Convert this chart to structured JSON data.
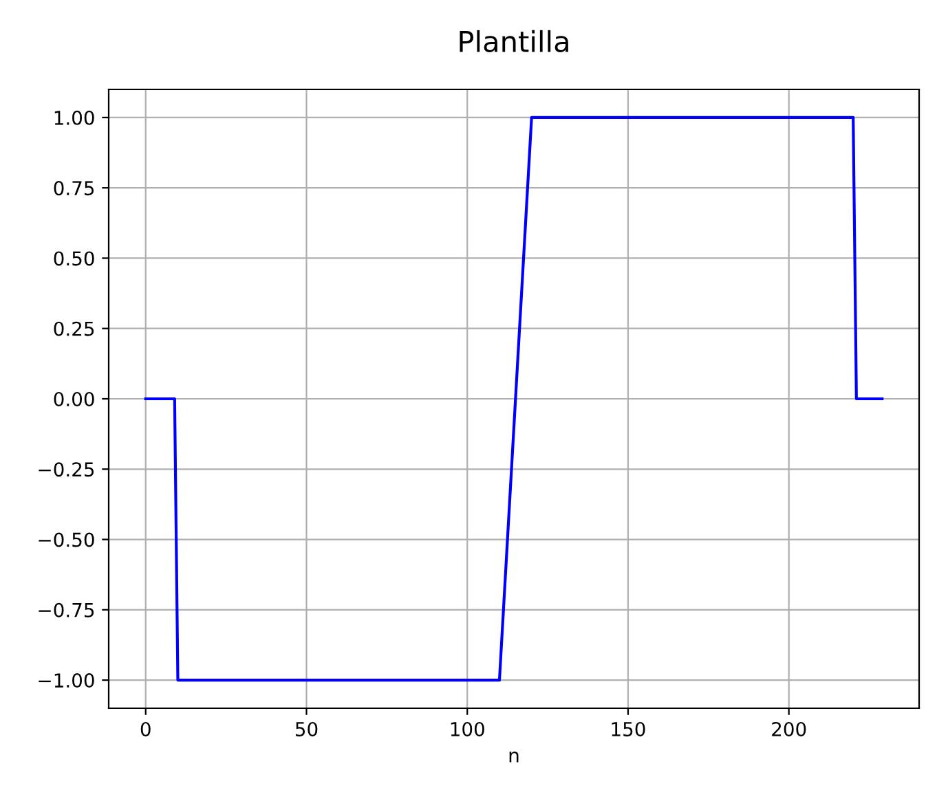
{
  "chart_data": {
    "type": "line",
    "title": "Plantilla",
    "xlabel": "n",
    "x": [
      0,
      9,
      10,
      110,
      120,
      220,
      221,
      229
    ],
    "series": [
      {
        "color": "#0000ff",
        "values": [
          0,
          0,
          -1,
          -1,
          1,
          1,
          0,
          0
        ]
      }
    ],
    "xlim": [
      -11.5,
      240.5
    ],
    "ylim": [
      -1.1,
      1.1
    ],
    "xticks": [
      0,
      50,
      100,
      150,
      200
    ],
    "yticks": [
      {
        "value": -1,
        "label": "−1.00"
      },
      {
        "value": -0.75,
        "label": "−0.75"
      },
      {
        "value": -0.5,
        "label": "−0.50"
      },
      {
        "value": -0.25,
        "label": "−0.25"
      },
      {
        "value": 0,
        "label": "0.00"
      },
      {
        "value": 0.25,
        "label": "0.25"
      },
      {
        "value": 0.5,
        "label": "0.50"
      },
      {
        "value": 0.75,
        "label": "0.75"
      },
      {
        "value": 1,
        "label": "1.00"
      }
    ],
    "grid": true
  }
}
